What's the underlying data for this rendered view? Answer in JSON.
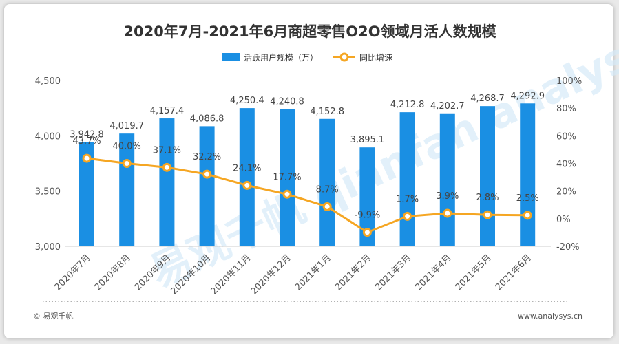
{
  "chart_data": {
    "type": "bar+line",
    "title": "2020年7月-2021年6月商超零售O2O领域月活人数规模",
    "categories": [
      "2020年7月",
      "2020年8月",
      "2020年9月",
      "2020年10月",
      "2020年11月",
      "2020年12月",
      "2021年1月",
      "2021年2月",
      "2021年3月",
      "2021年4月",
      "2021年5月",
      "2021年6月"
    ],
    "series": [
      {
        "name": "活跃用户规模（万）",
        "type": "bar",
        "axis": "left",
        "color": "#1a8fe3",
        "values": [
          3942.8,
          4019.7,
          4157.4,
          4086.8,
          4250.4,
          4240.8,
          4152.8,
          3895.1,
          4212.8,
          4202.7,
          4268.7,
          4292.9
        ],
        "labels": [
          "3,942.8",
          "4,019.7",
          "4,157.4",
          "4,086.8",
          "4,250.4",
          "4,240.8",
          "4,152.8",
          "3,895.1",
          "4,212.8",
          "4,202.7",
          "4,268.7",
          "4,292.9"
        ]
      },
      {
        "name": "同比增速",
        "type": "line",
        "axis": "right",
        "color": "#f5a623",
        "values": [
          43.7,
          40.0,
          37.1,
          32.2,
          24.1,
          17.7,
          8.7,
          -9.9,
          1.7,
          3.9,
          2.8,
          2.5
        ],
        "labels": [
          "43.7%",
          "40.0%",
          "37.1%",
          "32.2%",
          "24.1%",
          "17.7%",
          "8.7%",
          "-9.9%",
          "1.7%",
          "3.9%",
          "2.8%",
          "2.5%"
        ]
      }
    ],
    "ylim_left": [
      3000,
      4500
    ],
    "yticks_left": [
      "3,000",
      "3,500",
      "4,000",
      "4,500"
    ],
    "ylim_right": [
      -20,
      100
    ],
    "yticks_right": [
      "-20%",
      "0%",
      "20%",
      "40%",
      "60%",
      "80%",
      "100%"
    ],
    "legend_position": "top",
    "grid": false
  },
  "footer": {
    "source": "© 易观千帆",
    "url": "www.analysys.cn"
  },
  "watermark": "易观千帆 qianfan.analysys.cn"
}
